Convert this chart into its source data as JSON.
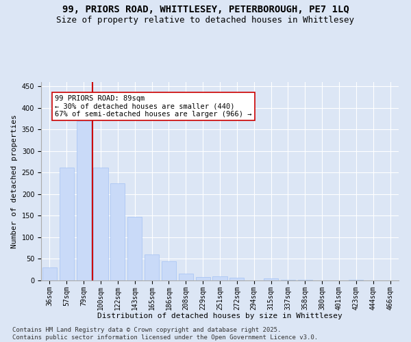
{
  "title_line1": "99, PRIORS ROAD, WHITTLESEY, PETERBOROUGH, PE7 1LQ",
  "title_line2": "Size of property relative to detached houses in Whittlesey",
  "xlabel": "Distribution of detached houses by size in Whittlesey",
  "ylabel": "Number of detached properties",
  "categories": [
    "36sqm",
    "57sqm",
    "79sqm",
    "100sqm",
    "122sqm",
    "143sqm",
    "165sqm",
    "186sqm",
    "208sqm",
    "229sqm",
    "251sqm",
    "272sqm",
    "294sqm",
    "315sqm",
    "337sqm",
    "358sqm",
    "380sqm",
    "401sqm",
    "423sqm",
    "444sqm",
    "466sqm"
  ],
  "values": [
    30,
    262,
    370,
    262,
    225,
    148,
    60,
    44,
    16,
    8,
    10,
    6,
    0,
    5,
    2,
    1,
    0,
    0,
    2,
    0,
    0
  ],
  "bar_color": "#c9daf8",
  "bar_edge_color": "#a4c2f4",
  "bar_width": 0.85,
  "red_line_index": 2.5,
  "red_line_color": "#cc0000",
  "annotation_text": "99 PRIORS ROAD: 89sqm\n← 30% of detached houses are smaller (440)\n67% of semi-detached houses are larger (966) →",
  "annotation_box_color": "#ffffff",
  "annotation_box_edge": "#cc0000",
  "ylim": [
    0,
    460
  ],
  "yticks": [
    0,
    50,
    100,
    150,
    200,
    250,
    300,
    350,
    400,
    450
  ],
  "background_color": "#dce6f5",
  "grid_color": "#ffffff",
  "footer_line1": "Contains HM Land Registry data © Crown copyright and database right 2025.",
  "footer_line2": "Contains public sector information licensed under the Open Government Licence v3.0.",
  "title_fontsize": 10,
  "subtitle_fontsize": 9,
  "axis_label_fontsize": 8,
  "tick_fontsize": 7,
  "annotation_fontsize": 7.5,
  "footer_fontsize": 6.5
}
